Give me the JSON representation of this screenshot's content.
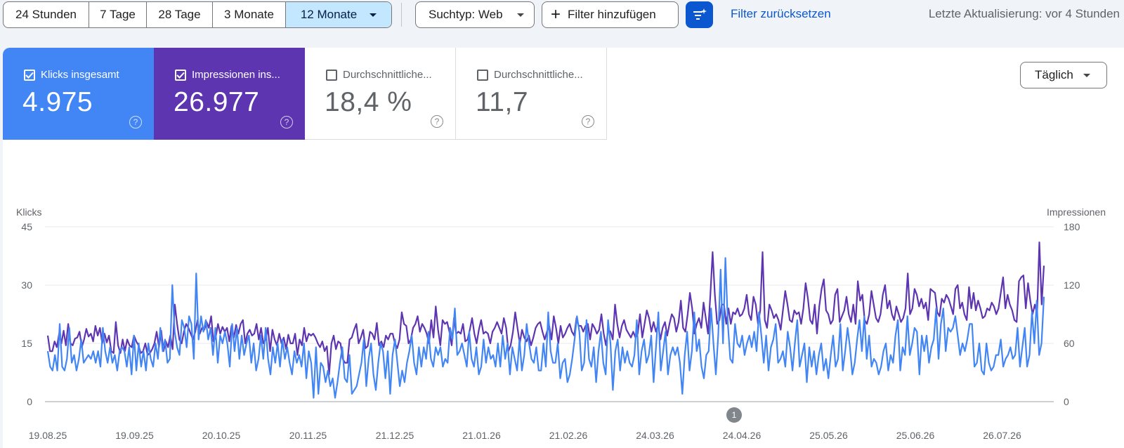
{
  "toolbar": {
    "ranges": [
      {
        "label": "24 Stunden",
        "selected": false
      },
      {
        "label": "7 Tage",
        "selected": false
      },
      {
        "label": "28 Tage",
        "selected": false
      },
      {
        "label": "3 Monate",
        "selected": false
      },
      {
        "label": "12 Monate",
        "selected": true
      }
    ],
    "search_type": "Suchtyp: Web",
    "add_filter": "Filter hinzufügen",
    "reset_filter": "Filter zurücksetzen",
    "last_update": "Letzte Aktualisierung: vor 4 Stunden"
  },
  "metrics": [
    {
      "label": "Klicks insgesamt",
      "value": "4.975",
      "checked": true,
      "color": "#4285f4"
    },
    {
      "label": "Impressionen ins...",
      "value": "26.977",
      "checked": true,
      "color": "#5e35b1"
    },
    {
      "label": "Durchschnittliche...",
      "value": "18,4 %",
      "checked": false,
      "color": "#ffffff"
    },
    {
      "label": "Durchschnittliche...",
      "value": "11,7",
      "checked": false,
      "color": "#ffffff"
    }
  ],
  "granularity": "Täglich",
  "annotation_badge": "1",
  "help_glyph": "?",
  "chart_data": {
    "type": "line",
    "left_axis_label": "Klicks",
    "right_axis_label": "Impressionen",
    "left_ticks": [
      0,
      15,
      30,
      45
    ],
    "right_ticks": [
      0,
      60,
      120,
      180
    ],
    "left_ylim": [
      0,
      45
    ],
    "right_ylim": [
      0,
      180
    ],
    "x_tick_labels": [
      "19.08.25",
      "19.09.25",
      "20.10.25",
      "20.11.25",
      "21.12.25",
      "21.01.26",
      "21.02.26",
      "24.03.26",
      "24.04.26",
      "25.05.26",
      "25.06.26",
      "26.07.26"
    ],
    "series": [
      {
        "name": "Klicks",
        "axis": "left",
        "color": "#4285f4",
        "values": [
          13,
          9,
          8,
          12,
          8,
          20,
          9,
          8,
          11,
          19,
          10,
          12,
          8,
          11,
          16,
          10,
          11,
          12,
          11,
          13,
          10,
          13,
          9,
          19,
          13,
          10,
          14,
          10,
          12,
          8,
          13,
          14,
          13,
          9,
          14,
          7,
          17,
          8,
          15,
          9,
          13,
          8,
          15,
          11,
          9,
          15,
          11,
          19,
          13,
          16,
          10,
          11,
          30,
          18,
          14,
          12,
          21,
          19,
          14,
          22,
          20,
          11,
          33,
          16,
          22,
          18,
          21,
          16,
          19,
          12,
          19,
          10,
          17,
          15,
          18,
          15,
          9,
          20,
          13,
          19,
          11,
          17,
          12,
          15,
          17,
          10,
          15,
          8,
          11,
          17,
          11,
          19,
          11,
          7,
          14,
          10,
          15,
          9,
          16,
          11,
          14,
          10,
          7,
          13,
          10,
          12,
          9,
          15,
          6,
          13,
          10,
          1,
          14,
          2,
          10,
          9,
          5,
          8,
          4,
          6,
          1,
          5,
          10,
          14,
          6,
          5,
          12,
          2,
          3,
          4,
          7,
          10,
          16,
          4,
          11,
          15,
          7,
          3,
          10,
          15,
          13,
          6,
          13,
          2,
          12,
          16,
          10,
          4,
          8,
          5,
          10,
          13,
          17,
          10,
          7,
          14,
          9,
          14,
          11,
          18,
          11,
          9,
          14,
          12,
          14,
          9,
          11,
          10,
          19,
          16,
          24,
          12,
          13,
          15,
          12,
          9,
          18,
          11,
          9,
          14,
          7,
          9,
          16,
          10,
          14,
          11,
          12,
          9,
          15,
          9,
          17,
          11,
          15,
          7,
          14,
          11,
          8,
          16,
          8,
          12,
          20,
          15,
          11,
          10,
          14,
          8,
          8,
          15,
          9,
          23,
          13,
          10,
          10,
          15,
          6,
          10,
          11,
          5,
          7,
          11,
          16,
          22,
          18,
          8,
          10,
          21,
          11,
          9,
          14,
          5,
          13,
          18,
          10,
          7,
          21,
          15,
          3,
          13,
          16,
          8,
          14,
          10,
          13,
          10,
          9,
          12,
          21,
          7,
          13,
          16,
          10,
          12,
          17,
          5,
          14,
          23,
          8,
          13,
          18,
          7,
          12,
          14,
          12,
          14,
          10,
          2,
          12,
          18,
          8,
          13,
          23,
          13,
          16,
          9,
          6,
          12,
          13,
          24,
          15,
          7,
          17,
          34,
          15,
          37,
          20,
          11,
          10,
          20,
          15,
          14,
          17,
          12,
          15,
          17,
          14,
          18,
          13,
          23,
          17,
          10,
          17,
          8,
          14,
          16,
          20,
          10,
          11,
          13,
          9,
          18,
          14,
          8,
          15,
          21,
          9,
          12,
          15,
          5,
          14,
          9,
          13,
          7,
          12,
          15,
          8,
          11,
          6,
          12,
          17,
          9,
          11,
          20,
          8,
          13,
          19,
          14,
          7,
          10,
          16,
          21,
          13,
          22,
          11,
          17,
          9,
          11,
          10,
          7,
          9,
          13,
          15,
          8,
          12,
          10,
          17,
          21,
          8,
          14,
          12,
          22,
          12,
          15,
          19,
          18,
          7,
          17,
          13,
          17,
          10,
          14,
          16,
          24,
          11,
          20,
          24,
          13,
          19,
          18,
          19,
          22,
          17,
          12,
          15,
          13,
          16,
          20,
          20,
          9,
          10,
          15,
          8,
          7,
          15,
          10,
          8,
          9,
          12,
          12,
          16,
          9,
          11,
          12,
          14,
          11,
          12,
          19,
          9,
          14,
          19,
          9,
          12,
          23,
          15,
          26,
          12,
          15,
          27
        ]
      },
      {
        "name": "Impressionen",
        "axis": "right",
        "color": "#5e35b1",
        "values": [
          68,
          52,
          52,
          62,
          56,
          70,
          60,
          73,
          58,
          80,
          60,
          58,
          65,
          66,
          72,
          56,
          64,
          75,
          67,
          70,
          62,
          78,
          68,
          76,
          60,
          70,
          61,
          68,
          52,
          50,
          82,
          58,
          50,
          64,
          52,
          64,
          58,
          56,
          68,
          62,
          58,
          50,
          52,
          60,
          48,
          50,
          54,
          60,
          72,
          56,
          73,
          52,
          62,
          56,
          68,
          54,
          100,
          80,
          64,
          60,
          72,
          80,
          76,
          70,
          64,
          72,
          84,
          70,
          76,
          74,
          82,
          76,
          88,
          62,
          66,
          80,
          70,
          77,
          72,
          76,
          62,
          78,
          66,
          79,
          70,
          80,
          84,
          60,
          70,
          74,
          68,
          70,
          80,
          64,
          76,
          60,
          64,
          76,
          52,
          74,
          64,
          58,
          70,
          60,
          66,
          54,
          69,
          60,
          60,
          70,
          48,
          64,
          58,
          76,
          62,
          70,
          68,
          70,
          66,
          60,
          56,
          62,
          52,
          57,
          28,
          60,
          68,
          54,
          62,
          60,
          44,
          40,
          40,
          64,
          66,
          74,
          80,
          60,
          66,
          74,
          55,
          57,
          72,
          70,
          64,
          81,
          58,
          62,
          56,
          68,
          64,
          70,
          70,
          60,
          55,
          64,
          92,
          80,
          78,
          60,
          64,
          76,
          80,
          88,
          72,
          80,
          76,
          70,
          60,
          84,
          66,
          98,
          74,
          58,
          84,
          80,
          82,
          72,
          58,
          86,
          70,
          72,
          70,
          80,
          62,
          64,
          74,
          86,
          70,
          60,
          74,
          84,
          70,
          72,
          70,
          60,
          72,
          76,
          82,
          76,
          70,
          86,
          76,
          52,
          58,
          72,
          92,
          76,
          60,
          74,
          66,
          62,
          68,
          58,
          66,
          76,
          80,
          82,
          72,
          64,
          72,
          78,
          64,
          88,
          76,
          60,
          78,
          66,
          70,
          76,
          80,
          72,
          68,
          86,
          78,
          78,
          72,
          78,
          80,
          64,
          80,
          76,
          70,
          74,
          90,
          70,
          58,
          74,
          72,
          64,
          100,
          80,
          66,
          78,
          84,
          74,
          70,
          66,
          72,
          66,
          70,
          90,
          66,
          80,
          94,
          86,
          72,
          82,
          72,
          80,
          64,
          76,
          82,
          68,
          80,
          90,
          86,
          72,
          82,
          104,
          76,
          72,
          90,
          112,
          96,
          70,
          80,
          86,
          76,
          102,
          86,
          70,
          110,
          154,
          110,
          80,
          84,
          100,
          100,
          80,
          96,
          80,
          92,
          90,
          96,
          88,
          90,
          96,
          110,
          90,
          84,
          108,
          100,
          80,
          94,
          154,
          84,
          76,
          100,
          94,
          86,
          90,
          84,
          74,
          94,
          114,
          100,
          84,
          82,
          94,
          90,
          92,
          80,
          96,
          122,
          106,
          84,
          80,
          100,
          70,
          98,
          116,
          126,
          94,
          90,
          80,
          84,
          110,
          116,
          82,
          88,
          94,
          108,
          90,
          82,
          100,
          80,
          124,
          104,
          110,
          84,
          80,
          90,
          114,
          100,
          86,
          82,
          90,
          110,
          120,
          96,
          104,
          90,
          84,
          98,
          90,
          82,
          86,
          96,
          132,
          90,
          96,
          116,
          110,
          98,
          106,
          96,
          102,
          84,
          116,
          114,
          112,
          92,
          88,
          106,
          102,
          110,
          106,
          98,
          90,
          116,
          120,
          96,
          102,
          90,
          84,
          118,
          96,
          112,
          94,
          104,
          96,
          86,
          88,
          96,
          94,
          102,
          98,
          90,
          96,
          112,
          128,
          96,
          110,
          100,
          94,
          84,
          82,
          124,
          128,
          130,
          96,
          122,
          104,
          90,
          100,
          90,
          164,
          100,
          140
        ]
      }
    ]
  }
}
